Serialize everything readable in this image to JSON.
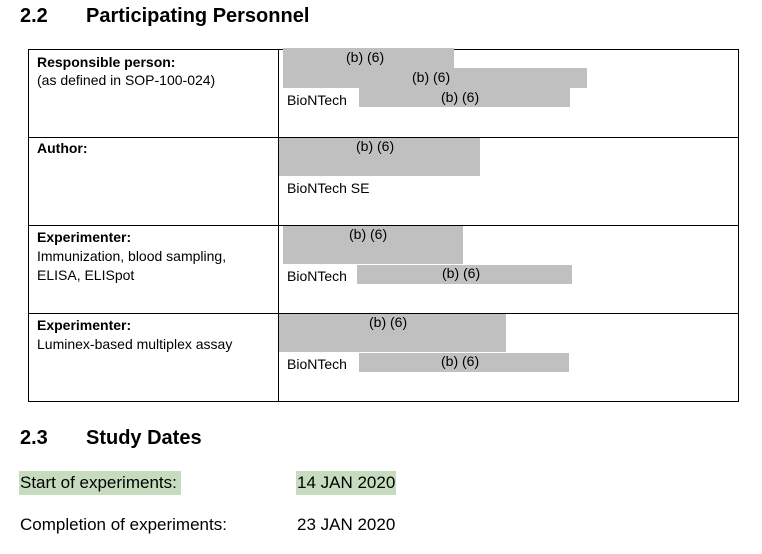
{
  "section_22": {
    "number": "2.2",
    "title": "Participating Personnel"
  },
  "redaction_label": "(b) (6)",
  "rows": [
    {
      "label": "Responsible person:",
      "sublines": [
        "(as defined in SOP-100-024)"
      ],
      "company": "BioNTech"
    },
    {
      "label": "Author:",
      "sublines": [],
      "company": "BioNTech SE"
    },
    {
      "label": "Experimenter:",
      "sublines": [
        "Immunization, blood sampling,",
        "ELISA, ELISpot"
      ],
      "company": "BioNTech"
    },
    {
      "label": "Experimenter:",
      "sublines": [
        "Luminex-based multiplex assay"
      ],
      "company": "BioNTech"
    }
  ],
  "section_23": {
    "number": "2.3",
    "title": "Study Dates"
  },
  "dates": [
    {
      "label": "Start of experiments:",
      "value": "14 JAN 2020",
      "highlighted": true
    },
    {
      "label": "Completion of experiments:",
      "value": "23 JAN 2020",
      "highlighted": false
    }
  ],
  "colors": {
    "redaction": "#c0c0c0",
    "highlight": "#c6dcbf"
  }
}
